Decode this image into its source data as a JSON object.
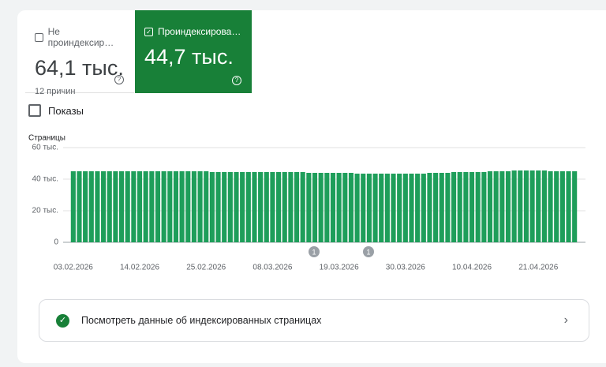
{
  "cards": [
    {
      "label": "Не проиндексир…",
      "value": "64,1 тыс.",
      "note": "12 причин"
    },
    {
      "label": "Проиндексирова…",
      "value": "44,7 тыс."
    }
  ],
  "impressions_label": "Показы",
  "chart_data": {
    "type": "bar",
    "y_label": "Страницы",
    "color": "#1e9e5a",
    "grid": true,
    "ylim": [
      0,
      60000
    ],
    "yticks": [
      0,
      {
        "value": 20000,
        "label": "20 тыс."
      },
      {
        "value": 40000,
        "label": "40 тыс."
      },
      {
        "value": 60000,
        "label": "60 тыс."
      }
    ],
    "categories": [
      "03.02.2026",
      null,
      null,
      null,
      null,
      null,
      null,
      null,
      null,
      null,
      null,
      "14.02.2026",
      null,
      null,
      null,
      null,
      null,
      null,
      null,
      null,
      null,
      null,
      "25.02.2026",
      null,
      null,
      null,
      null,
      null,
      null,
      null,
      null,
      null,
      null,
      "08.03.2026",
      null,
      null,
      null,
      null,
      null,
      null,
      null,
      null,
      null,
      null,
      "19.03.2026",
      null,
      null,
      null,
      null,
      null,
      null,
      null,
      null,
      null,
      null,
      "30.03.2026",
      null,
      null,
      null,
      null,
      null,
      null,
      null,
      null,
      null,
      null,
      "10.04.2026",
      null,
      null,
      null,
      null,
      null,
      null,
      null,
      null,
      null,
      null,
      "21.04.2026",
      null,
      null,
      null,
      null,
      null,
      null
    ],
    "values": [
      45000,
      45000,
      45000,
      45000,
      45000,
      45000,
      45000,
      45000,
      45000,
      45000,
      45000,
      45000,
      45000,
      45000,
      45000,
      45000,
      45000,
      45000,
      45000,
      45000,
      45000,
      45000,
      45000,
      44500,
      44500,
      44500,
      44500,
      44500,
      44500,
      44500,
      44500,
      44500,
      44500,
      44500,
      44500,
      44500,
      44500,
      44500,
      44500,
      44000,
      44000,
      44000,
      44000,
      44000,
      44000,
      44000,
      44000,
      43500,
      43500,
      43500,
      43500,
      43500,
      43500,
      43500,
      43500,
      43500,
      43500,
      43500,
      43500,
      44000,
      44000,
      44000,
      44000,
      44500,
      44500,
      44500,
      44500,
      44500,
      44500,
      45000,
      45000,
      45000,
      45000,
      45500,
      45500,
      45500,
      45500,
      45500,
      45500,
      45000,
      45000,
      45000,
      45000,
      45000
    ],
    "annotations": [
      "1",
      "1"
    ]
  },
  "link": "Посмотреть данные об индексированных страницах"
}
